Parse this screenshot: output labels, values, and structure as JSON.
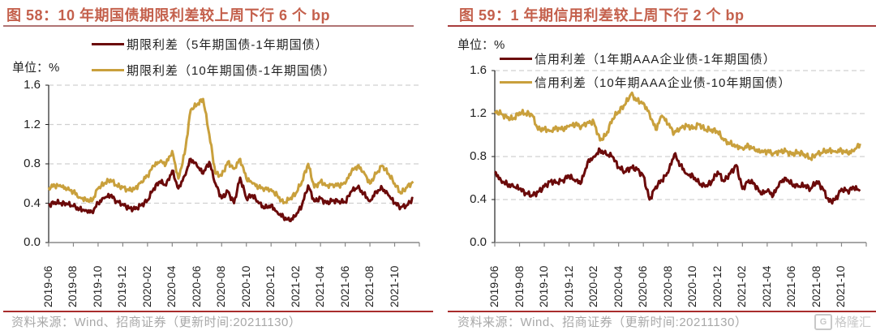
{
  "charts": [
    {
      "title": "图 58：10 年期国债期限利差较上周下行 6 个 bp",
      "unit_label": "单位：%",
      "source": "资料来源：Wind、招商证券（更新时间:20211130）"
    },
    {
      "title": "图 59：1 年期信用利差较上周下行 2 个 bp",
      "unit_label": "单位：%",
      "source": "资料来源：Wind、招商证券（更新时间:20211130）"
    }
  ],
  "watermark": {
    "logo_text": "G",
    "text": "格隆汇"
  },
  "colors": {
    "series_dark": "#6b0a0a",
    "series_gold": "#c9a03c",
    "title": "#c4604c",
    "grid": "#d0d0d0"
  },
  "chart_data": [
    {
      "type": "line",
      "title": "图 58：10 年期国债期限利差较上周下行 6 个 bp",
      "ylabel": "单位：%",
      "ylim": [
        0.0,
        1.6
      ],
      "yticks": [
        "1.6",
        "1.2",
        "0.8",
        "0.4",
        "0.0"
      ],
      "ytick_values": [
        1.6,
        1.2,
        0.8,
        0.4,
        0.0
      ],
      "xlim": [
        "2019-06",
        "2021-12"
      ],
      "xticks": [
        "2019-06",
        "2019-08",
        "2019-10",
        "2019-12",
        "2020-02",
        "2020-04",
        "2020-06",
        "2020-08",
        "2020-10",
        "2020-12",
        "2021-02",
        "2021-04",
        "2021-06",
        "2021-08",
        "2021-10"
      ],
      "grid": "horizontal-dashed",
      "legend": "top",
      "x_months": [
        0,
        0.5,
        1,
        1.5,
        2,
        2.5,
        3,
        3.5,
        4,
        4.5,
        5,
        5.5,
        6,
        6.5,
        7,
        7.5,
        8,
        8.5,
        9,
        9.5,
        10,
        10.5,
        11,
        11.5,
        12,
        12.5,
        13,
        13.5,
        14,
        14.5,
        15,
        15.5,
        16,
        16.5,
        17,
        17.5,
        18,
        18.5,
        19,
        19.5,
        20,
        20.5,
        21,
        21.5,
        22,
        22.5,
        23,
        23.5,
        24,
        24.5,
        25,
        25.5,
        26,
        26.5,
        27,
        27.5,
        28,
        28.5,
        29,
        29.5
      ],
      "series": [
        {
          "name": "期限利差（5年期国债-1年期国债）",
          "color": "#6b0a0a",
          "values": [
            0.38,
            0.41,
            0.4,
            0.39,
            0.37,
            0.34,
            0.33,
            0.31,
            0.4,
            0.45,
            0.48,
            0.42,
            0.39,
            0.35,
            0.34,
            0.38,
            0.43,
            0.55,
            0.62,
            0.58,
            0.73,
            0.55,
            0.68,
            0.85,
            0.78,
            0.7,
            0.82,
            0.6,
            0.45,
            0.52,
            0.4,
            0.66,
            0.45,
            0.48,
            0.4,
            0.35,
            0.38,
            0.31,
            0.26,
            0.22,
            0.27,
            0.38,
            0.58,
            0.42,
            0.45,
            0.4,
            0.43,
            0.42,
            0.41,
            0.52,
            0.56,
            0.5,
            0.42,
            0.52,
            0.55,
            0.48,
            0.4,
            0.36,
            0.38,
            0.45
          ]
        },
        {
          "name": "期限利差（10年期国债-1年期国债）",
          "color": "#c9a03c",
          "values": [
            0.56,
            0.58,
            0.57,
            0.54,
            0.52,
            0.46,
            0.44,
            0.42,
            0.55,
            0.6,
            0.64,
            0.58,
            0.56,
            0.53,
            0.55,
            0.62,
            0.68,
            0.78,
            0.82,
            0.8,
            0.93,
            0.65,
            0.9,
            1.35,
            1.4,
            1.46,
            1.1,
            0.7,
            0.68,
            0.82,
            0.75,
            0.85,
            0.65,
            0.6,
            0.56,
            0.55,
            0.54,
            0.48,
            0.4,
            0.44,
            0.5,
            0.62,
            0.8,
            0.56,
            0.62,
            0.58,
            0.59,
            0.58,
            0.6,
            0.72,
            0.78,
            0.72,
            0.6,
            0.7,
            0.78,
            0.7,
            0.6,
            0.5,
            0.56,
            0.62
          ]
        }
      ]
    },
    {
      "type": "line",
      "title": "图 59：1 年期信用利差较上周下行 2 个 bp",
      "ylabel": "单位：%",
      "ylim": [
        0.0,
        1.6
      ],
      "yticks": [
        "1.6",
        "1.2",
        "0.8",
        "0.4",
        "0.0"
      ],
      "ytick_values": [
        1.6,
        1.2,
        0.8,
        0.4,
        0.0
      ],
      "xlim": [
        "2019-06",
        "2021-12"
      ],
      "xticks": [
        "2019-06",
        "2019-08",
        "2019-10",
        "2019-12",
        "2020-02",
        "2020-04",
        "2020-06",
        "2020-08",
        "2020-10",
        "2020-12",
        "2021-02",
        "2021-04",
        "2021-06",
        "2021-08",
        "2021-10"
      ],
      "grid": "horizontal-dashed",
      "legend": "top",
      "x_months": [
        0,
        0.5,
        1,
        1.5,
        2,
        2.5,
        3,
        3.5,
        4,
        4.5,
        5,
        5.5,
        6,
        6.5,
        7,
        7.5,
        8,
        8.5,
        9,
        9.5,
        10,
        10.5,
        11,
        11.5,
        12,
        12.5,
        13,
        13.5,
        14,
        14.5,
        15,
        15.5,
        16,
        16.5,
        17,
        17.5,
        18,
        18.5,
        19,
        19.5,
        20,
        20.5,
        21,
        21.5,
        22,
        22.5,
        23,
        23.5,
        24,
        24.5,
        25,
        25.5,
        26,
        26.5,
        27,
        27.5,
        28,
        28.5,
        29,
        29.5
      ],
      "series": [
        {
          "name": "信用利差（1年期AAA企业债-1年期国债）",
          "color": "#6b0a0a",
          "values": [
            0.66,
            0.58,
            0.54,
            0.52,
            0.5,
            0.46,
            0.44,
            0.47,
            0.52,
            0.57,
            0.56,
            0.58,
            0.62,
            0.57,
            0.56,
            0.75,
            0.8,
            0.86,
            0.82,
            0.8,
            0.7,
            0.66,
            0.7,
            0.68,
            0.62,
            0.4,
            0.52,
            0.58,
            0.65,
            0.82,
            0.72,
            0.64,
            0.62,
            0.55,
            0.52,
            0.56,
            0.66,
            0.57,
            0.64,
            0.72,
            0.5,
            0.58,
            0.54,
            0.45,
            0.48,
            0.44,
            0.56,
            0.6,
            0.54,
            0.52,
            0.53,
            0.5,
            0.57,
            0.5,
            0.38,
            0.4,
            0.5,
            0.48,
            0.51,
            0.48
          ]
        },
        {
          "name": "信用利差（10年期AAA企业债-10年期国债）",
          "color": "#c9a03c",
          "values": [
            1.22,
            1.2,
            1.16,
            1.15,
            1.21,
            1.2,
            1.19,
            1.05,
            1.06,
            1.04,
            1.07,
            1.05,
            1.08,
            1.1,
            1.08,
            1.12,
            1.12,
            0.95,
            1.0,
            1.15,
            1.22,
            1.28,
            1.38,
            1.32,
            1.3,
            1.2,
            1.05,
            1.18,
            1.1,
            1.02,
            1.07,
            1.09,
            1.06,
            1.1,
            1.05,
            1.05,
            1.03,
            0.95,
            0.92,
            0.9,
            0.88,
            0.9,
            0.86,
            0.84,
            0.85,
            0.83,
            0.85,
            0.85,
            0.82,
            0.84,
            0.82,
            0.78,
            0.82,
            0.84,
            0.86,
            0.85,
            0.86,
            0.83,
            0.85,
            0.92
          ]
        }
      ]
    }
  ]
}
